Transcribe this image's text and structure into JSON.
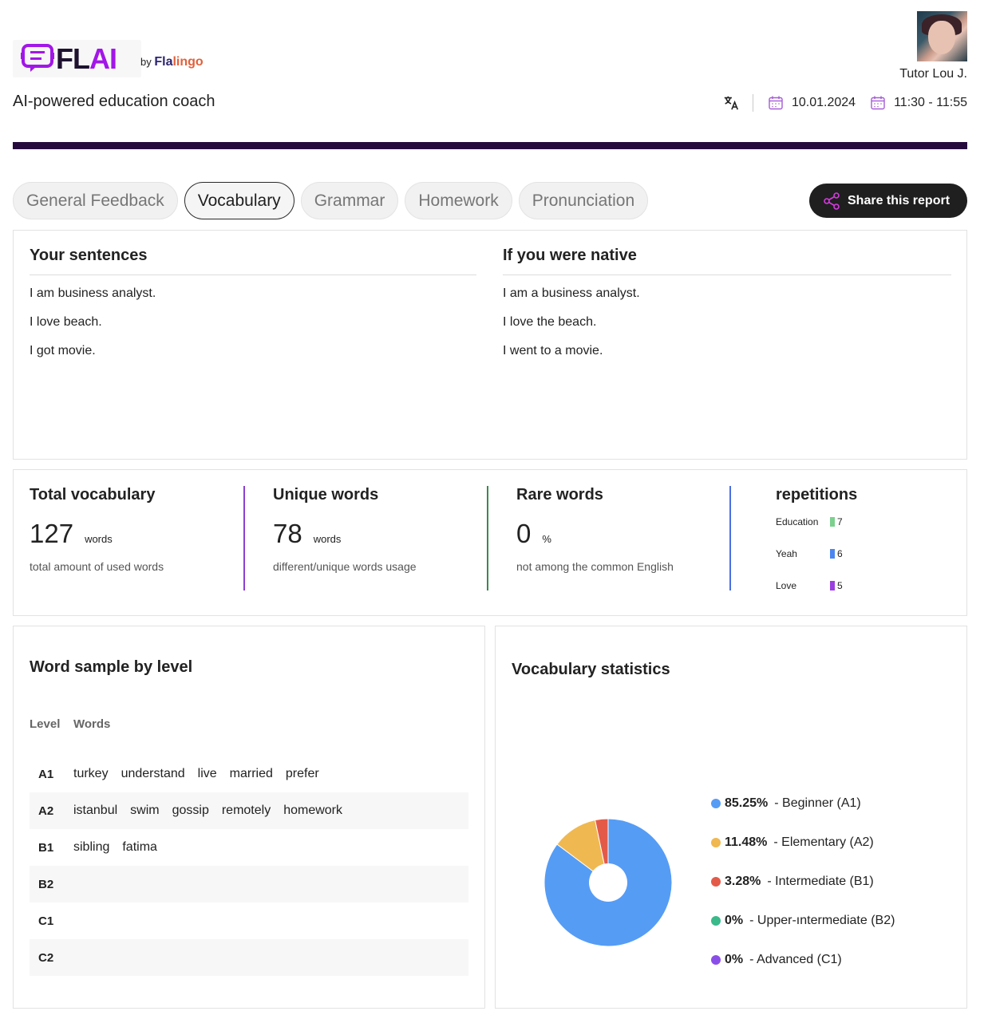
{
  "header": {
    "logo_text_fl": "FL",
    "logo_text_ai": "AI",
    "logo_by": "by",
    "logo_brand_fla": "Fla",
    "logo_brand_lingo": "lingo",
    "tagline": "AI-powered education coach",
    "tutor_name": "Tutor Lou J.",
    "date": "10.01.2024",
    "time": "11:30 - 11:55"
  },
  "tabs": [
    {
      "label": "General Feedback",
      "active": false
    },
    {
      "label": "Vocabulary",
      "active": true
    },
    {
      "label": "Grammar",
      "active": false
    },
    {
      "label": "Homework",
      "active": false
    },
    {
      "label": "Pronunciation",
      "active": false
    }
  ],
  "share_label": "Share this report",
  "sentences": {
    "your_title": "Your sentences",
    "native_title": "If you were native",
    "yours": [
      "I am business analyst.",
      "I love beach.",
      "I got movie."
    ],
    "native": [
      "I am a business analyst.",
      "I love the beach.",
      "I went to a movie."
    ]
  },
  "stats": {
    "total": {
      "title": "Total vocabulary",
      "value": "127",
      "unit": "words",
      "desc": "total amount of used words",
      "color": "#8e3fd0"
    },
    "unique": {
      "title": "Unique words",
      "value": "78",
      "unit": "words",
      "desc": "different/unique words usage",
      "color": "#3a8a4e"
    },
    "rare": {
      "title": "Rare words",
      "value": "0",
      "unit": "%",
      "desc": "not among the common English",
      "color": "#4a6fe0"
    },
    "repetitions": {
      "title": "repetitions",
      "items": [
        {
          "word": "Education",
          "count": "7",
          "color": "#7bd08e"
        },
        {
          "word": "Yeah",
          "count": "6",
          "color": "#4a86f0"
        },
        {
          "word": "Love",
          "count": "5",
          "color": "#9a3ee0"
        }
      ]
    }
  },
  "word_sample": {
    "title": "Word sample by level",
    "col_level": "Level",
    "col_words": "Words",
    "rows": [
      {
        "level": "A1",
        "words": [
          "turkey",
          "understand",
          "live",
          "married",
          "prefer"
        ]
      },
      {
        "level": "A2",
        "words": [
          "istanbul",
          "swim",
          "gossip",
          "remotely",
          "homework"
        ]
      },
      {
        "level": "B1",
        "words": [
          "sibling",
          "fatima"
        ]
      },
      {
        "level": "B2",
        "words": []
      },
      {
        "level": "C1",
        "words": []
      },
      {
        "level": "C2",
        "words": []
      }
    ]
  },
  "vocab_stats": {
    "title": "Vocabulary statistics",
    "legend": [
      {
        "pct": "85.25%",
        "label": "- Beginner (A1)",
        "color": "#559cf5"
      },
      {
        "pct": "11.48%",
        "label": "- Elementary (A2)",
        "color": "#f0b850"
      },
      {
        "pct": "3.28%",
        "label": "- Intermediate (B1)",
        "color": "#e35a48"
      },
      {
        "pct": "0%",
        "label": "- Upper-ıntermediate (B2)",
        "color": "#3ab98a"
      },
      {
        "pct": "0%",
        "label": "- Advanced (C1)",
        "color": "#8a4ee8"
      }
    ]
  },
  "chart_data": {
    "type": "pie",
    "categories": [
      "Beginner (A1)",
      "Elementary (A2)",
      "Intermediate (B1)",
      "Upper-ıntermediate (B2)",
      "Advanced (C1)"
    ],
    "values": [
      85.25,
      11.48,
      3.28,
      0,
      0
    ],
    "colors": [
      "#559cf5",
      "#f0b850",
      "#e35a48",
      "#3ab98a",
      "#8a4ee8"
    ],
    "title": "Vocabulary statistics",
    "legend": "right"
  }
}
